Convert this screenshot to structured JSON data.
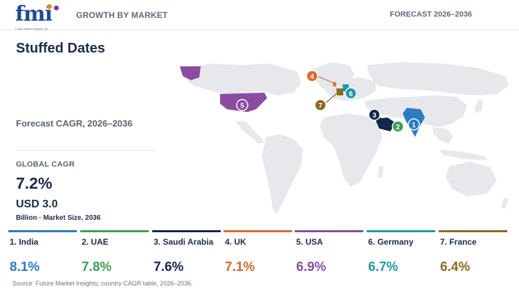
{
  "header": {
    "logo_text": "fmi",
    "logo_tagline": "Future Market Insights, Inc.",
    "section_label": "GROWTH BY MARKET",
    "forecast_label": "FORECAST 2026–2036"
  },
  "title": "Stuffed Dates",
  "subtitle": "Forecast CAGR, 2026–2036",
  "global": {
    "cagr_label": "GLOBAL CAGR",
    "cagr_value": "7.2%",
    "market_size": "USD 3.0",
    "market_size_note": "Billion · Market Size, 2036"
  },
  "colors": {
    "land": "#e6e8eb",
    "india": "#2e7bbf",
    "uae": "#3aa055",
    "saudi_arabia": "#13274d",
    "uk": "#d9692f",
    "usa": "#8a4ca1",
    "germany": "#1f9aa6",
    "france": "#8a6a1f"
  },
  "countries": [
    {
      "rank": "1",
      "label": "1. India",
      "value": "8.1%",
      "color": "#2e7bbf"
    },
    {
      "rank": "2",
      "label": "2. UAE",
      "value": "7.8%",
      "color": "#3aa055"
    },
    {
      "rank": "3",
      "label": "3. Saudi Arabia",
      "value": "7.6%",
      "color": "#13274d"
    },
    {
      "rank": "4",
      "label": "4. UK",
      "value": "7.1%",
      "color": "#d9692f"
    },
    {
      "rank": "5",
      "label": "5. USA",
      "value": "6.9%",
      "color": "#8a4ca1"
    },
    {
      "rank": "6",
      "label": "6. Germany",
      "value": "6.7%",
      "color": "#1f9aa6"
    },
    {
      "rank": "7",
      "label": "7. France",
      "value": "6.4%",
      "color": "#8a6a1f"
    }
  ],
  "source": "Source: Future Market Insights; country CAGR table, 2026–2036."
}
